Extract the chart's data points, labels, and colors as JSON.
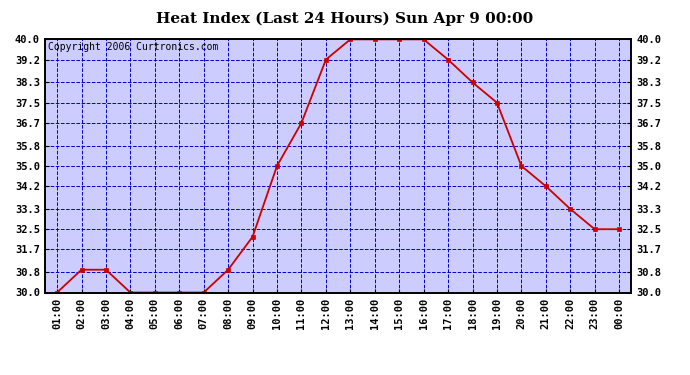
{
  "title": "Heat Index (Last 24 Hours) Sun Apr 9 00:00",
  "copyright": "Copyright 2006 Curtronics.com",
  "x_labels": [
    "01:00",
    "02:00",
    "03:00",
    "04:00",
    "05:00",
    "06:00",
    "07:00",
    "08:00",
    "09:00",
    "10:00",
    "11:00",
    "12:00",
    "13:00",
    "14:00",
    "15:00",
    "16:00",
    "17:00",
    "18:00",
    "19:00",
    "20:00",
    "21:00",
    "22:00",
    "23:00",
    "00:00"
  ],
  "y_values": [
    30.0,
    30.9,
    30.9,
    30.0,
    30.0,
    30.0,
    30.0,
    30.9,
    32.2,
    35.0,
    36.7,
    39.2,
    40.0,
    40.0,
    40.0,
    40.0,
    39.2,
    38.3,
    37.5,
    35.0,
    34.2,
    33.3,
    32.5,
    32.5
  ],
  "ylim_min": 30.0,
  "ylim_max": 40.0,
  "yticks": [
    30.0,
    30.8,
    31.7,
    32.5,
    33.3,
    34.2,
    35.0,
    35.8,
    36.7,
    37.5,
    38.3,
    39.2,
    40.0
  ],
  "ytick_labels": [
    "30.0",
    "30.8",
    "31.7",
    "32.5",
    "33.3",
    "34.2",
    "35.0",
    "35.8",
    "36.7",
    "37.5",
    "38.3",
    "39.2",
    "40.0"
  ],
  "line_color": "#cc0000",
  "marker_color": "#cc0000",
  "marker": "s",
  "marker_size": 2.5,
  "background_color": "#ffffff",
  "plot_bg_color": "#ccccff",
  "grid_color": "#0000cc",
  "grid_style": "--",
  "title_fontsize": 11,
  "copyright_fontsize": 7,
  "tick_fontsize": 7.5,
  "border_color": "#000000"
}
